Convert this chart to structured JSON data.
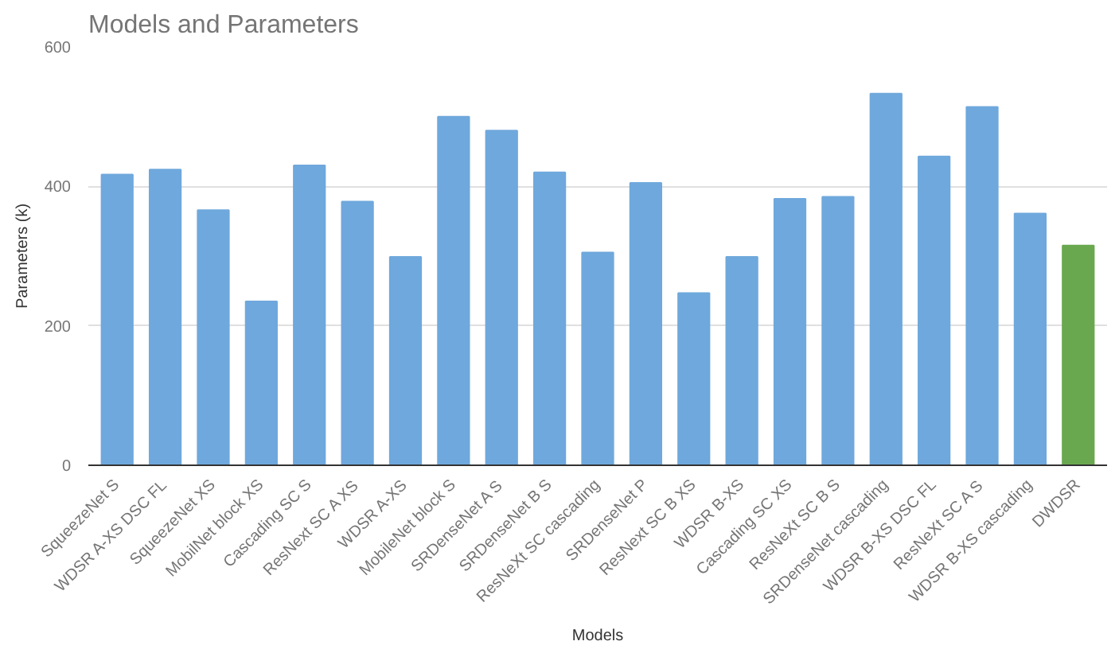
{
  "chart_data": {
    "type": "bar",
    "title": "Models and Parameters",
    "xlabel": "Models",
    "ylabel": "Parameters (k)",
    "categories": [
      "SqueezeNet S",
      "WDSR A-XS DSC FL",
      "SqueezeNet XS",
      "MobilNet block XS",
      "Cascading SC S",
      "ResNext SC A XS",
      "WDSR A-XS",
      "MobileNet block S",
      "SRDenseNet A S",
      "SRDenseNet B S",
      "ResNeXt SC cascading",
      "SRDenseNet P",
      "ResNext SC B XS",
      "WDSR B-XS",
      "Cascading SC XS",
      "ResNeXt SC B S",
      "SRDenseNet cascading",
      "WDSR B-XS DSC FL",
      "ResNeXt SC A S",
      "WDSR B-XS cascading",
      "DWDSR"
    ],
    "values": [
      417,
      424,
      366,
      235,
      430,
      378,
      299,
      500,
      480,
      420,
      305,
      405,
      247,
      299,
      382,
      385,
      533,
      443,
      514,
      361,
      315
    ],
    "colors": [
      "#6fa8dc",
      "#6fa8dc",
      "#6fa8dc",
      "#6fa8dc",
      "#6fa8dc",
      "#6fa8dc",
      "#6fa8dc",
      "#6fa8dc",
      "#6fa8dc",
      "#6fa8dc",
      "#6fa8dc",
      "#6fa8dc",
      "#6fa8dc",
      "#6fa8dc",
      "#6fa8dc",
      "#6fa8dc",
      "#6fa8dc",
      "#6fa8dc",
      "#6fa8dc",
      "#6fa8dc",
      "#6aa84f"
    ],
    "ylim": [
      0,
      600
    ],
    "yticks": [
      0,
      200,
      400,
      600
    ],
    "grid": "y"
  }
}
